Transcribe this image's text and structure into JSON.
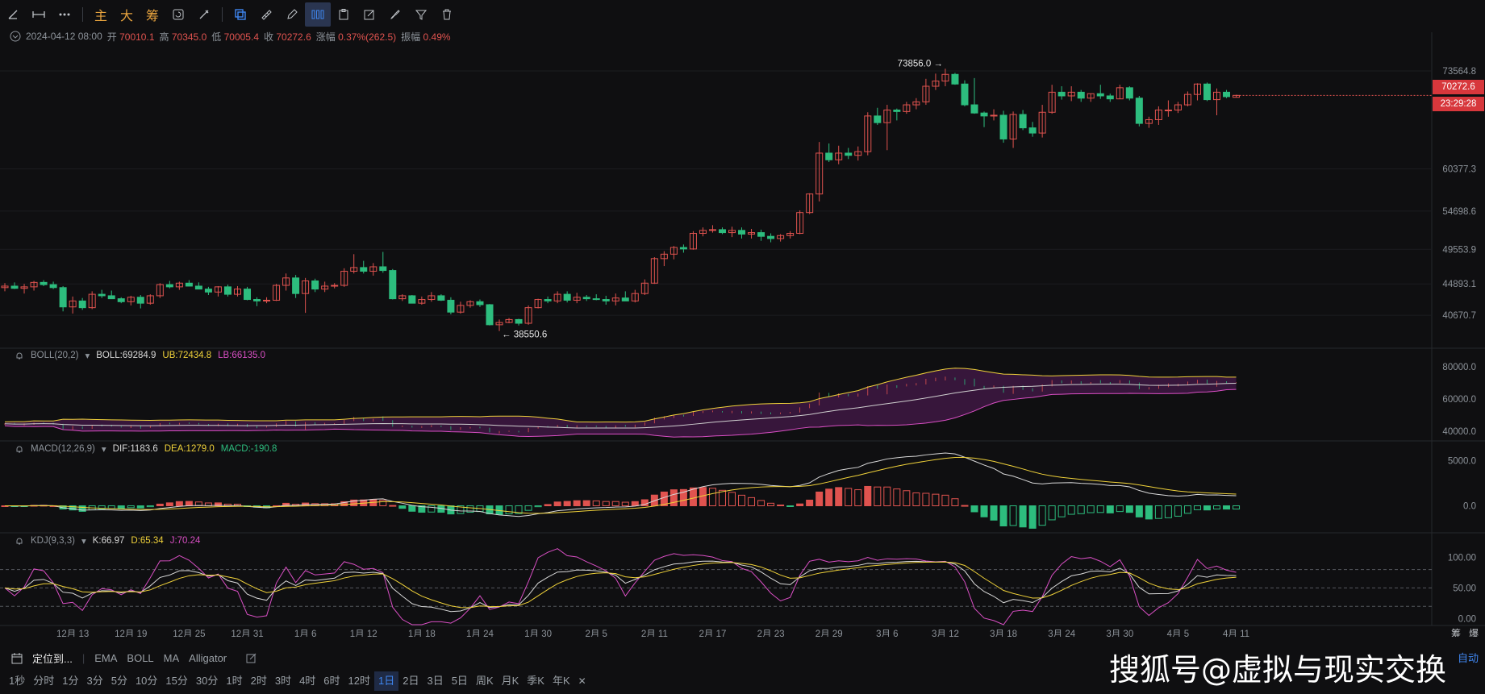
{
  "toolbar": {
    "text_buttons": [
      "主",
      "大",
      "筹"
    ],
    "icons": [
      "line-tool-icon",
      "horizontal-line-icon",
      "more-icon",
      "ruler-icon",
      "fib-icon",
      "clone-icon",
      "measure-icon",
      "pen-icon",
      "bars-icon",
      "clipboard-icon",
      "edit-icon",
      "brush-icon",
      "filter-icon",
      "trash-icon"
    ]
  },
  "info_line": {
    "datetime": "2024-04-12 08:00",
    "open_label": "开",
    "open": "70010.1",
    "high_label": "高",
    "high": "70345.0",
    "low_label": "低",
    "low": "70005.4",
    "close_label": "收",
    "close": "70272.6",
    "change_label": "涨幅",
    "change": "0.37%(262.5)",
    "amp_label": "振幅",
    "amp": "0.49%"
  },
  "main_axis": [
    "73564.8",
    "60377.3",
    "54698.6",
    "49553.9",
    "44893.1",
    "40670.7"
  ],
  "current_price": "70272.6",
  "countdown": "23:29:28",
  "annotations": {
    "high": "73856.0",
    "low": "38550.6"
  },
  "boll": {
    "name": "BOLL(20,2)",
    "mid": "BOLL:69284.9",
    "ub": "UB:72434.8",
    "lb": "LB:66135.0",
    "axis": [
      "80000.0",
      "60000.0",
      "40000.0"
    ]
  },
  "macd": {
    "name": "MACD(12,26,9)",
    "dif": "DIF:1183.6",
    "dea": "DEA:1279.0",
    "macd": "MACD:-190.8",
    "axis": [
      "5000.0",
      "0.0"
    ]
  },
  "kdj": {
    "name": "KDJ(9,3,3)",
    "k": "K:66.97",
    "d": "D:65.34",
    "j": "J:70.24",
    "axis": [
      "100.00",
      "50.00",
      "0.00"
    ]
  },
  "x_labels": [
    "12月 13",
    "12月 19",
    "12月 25",
    "12月 31",
    "1月 6",
    "1月 12",
    "1月 18",
    "1月 24",
    "1月 30",
    "2月 5",
    "2月 11",
    "2月 17",
    "2月 23",
    "2月 29",
    "3月 6",
    "3月 12",
    "3月 18",
    "3月 24",
    "3月 30",
    "4月 5",
    "4月 11"
  ],
  "corner_labels": [
    "筹",
    "爆"
  ],
  "bottom": {
    "locate": "定位到...",
    "indicators": [
      "EMA",
      "BOLL",
      "MA",
      "Alligator"
    ],
    "timeframes": [
      "1秒",
      "分时",
      "1分",
      "3分",
      "5分",
      "10分",
      "15分",
      "30分",
      "1时",
      "2时",
      "3时",
      "4时",
      "6时",
      "12时",
      "1日",
      "2日",
      "3日",
      "5日",
      "周K",
      "月K",
      "季K",
      "年K"
    ],
    "selected": "1日",
    "auto": "自动"
  },
  "watermark": "搜狐号@虚拟与现实交换",
  "colors": {
    "up": "#e0534f",
    "down": "#2dbd7e",
    "bg": "#0f0f11",
    "accent": "#3f86f0"
  },
  "chart_data": {
    "type": "candlestick",
    "series": [
      {
        "name": "candles",
        "values": [
          [
            44400,
            45000,
            43900,
            44600
          ],
          [
            44600,
            45100,
            44200,
            44300
          ],
          [
            44300,
            44900,
            43600,
            44500
          ],
          [
            44500,
            45300,
            44000,
            45100
          ],
          [
            45100,
            45400,
            44600,
            44800
          ],
          [
            44800,
            45200,
            44200,
            44400
          ],
          [
            44400,
            44600,
            41200,
            41800
          ],
          [
            41800,
            43200,
            40900,
            42600
          ],
          [
            42600,
            43000,
            41400,
            41700
          ],
          [
            41700,
            43900,
            41500,
            43500
          ],
          [
            43500,
            44100,
            43000,
            43300
          ],
          [
            43300,
            44000,
            42900,
            42900
          ],
          [
            42900,
            43100,
            42300,
            42500
          ],
          [
            42500,
            43300,
            42000,
            43100
          ],
          [
            43100,
            43400,
            41600,
            42300
          ],
          [
            42300,
            43500,
            42100,
            43300
          ],
          [
            43300,
            45000,
            43000,
            44800
          ],
          [
            44800,
            45300,
            44300,
            44500
          ],
          [
            44500,
            45200,
            44100,
            45000
          ],
          [
            45000,
            45400,
            44600,
            44600
          ],
          [
            44600,
            45100,
            44200,
            44200
          ],
          [
            44200,
            44500,
            43400,
            43800
          ],
          [
            43800,
            44600,
            43200,
            44500
          ],
          [
            44500,
            44800,
            43200,
            43500
          ],
          [
            43500,
            44600,
            43200,
            44200
          ],
          [
            44200,
            44500,
            42700,
            42800
          ],
          [
            42800,
            43100,
            41900,
            42600
          ],
          [
            42600,
            43100,
            42300,
            42700
          ],
          [
            42700,
            44900,
            42600,
            44700
          ],
          [
            44700,
            46300,
            44000,
            45700
          ],
          [
            45700,
            46100,
            43000,
            43600
          ],
          [
            43600,
            45700,
            41000,
            45300
          ],
          [
            45300,
            45600,
            43800,
            44200
          ],
          [
            44200,
            45200,
            43800,
            44600
          ],
          [
            44600,
            45000,
            44300,
            44700
          ],
          [
            44700,
            47000,
            44500,
            46600
          ],
          [
            46600,
            48900,
            46300,
            47100
          ],
          [
            47100,
            48000,
            46300,
            46600
          ],
          [
            46600,
            47700,
            46000,
            47200
          ],
          [
            47200,
            49200,
            46400,
            46700
          ],
          [
            46700,
            46900,
            42800,
            42900
          ],
          [
            42900,
            43500,
            42600,
            43300
          ],
          [
            43300,
            43400,
            42300,
            42300
          ],
          [
            42300,
            43200,
            42100,
            42800
          ],
          [
            42800,
            43800,
            42500,
            43300
          ],
          [
            43300,
            43500,
            42600,
            42700
          ],
          [
            42700,
            43100,
            40800,
            41100
          ],
          [
            41100,
            42500,
            40900,
            42000
          ],
          [
            42000,
            42700,
            41700,
            42500
          ],
          [
            42500,
            42800,
            41800,
            42100
          ],
          [
            42100,
            42200,
            39300,
            39400
          ],
          [
            39400,
            40100,
            38550,
            39700
          ],
          [
            39700,
            40300,
            39600,
            40100
          ],
          [
            40100,
            40200,
            39300,
            39600
          ],
          [
            39600,
            42000,
            39400,
            41700
          ],
          [
            41700,
            42900,
            41600,
            42800
          ],
          [
            42800,
            43200,
            42300,
            42600
          ],
          [
            42600,
            43900,
            42300,
            43500
          ],
          [
            43500,
            43900,
            42400,
            42700
          ],
          [
            42700,
            43700,
            42300,
            43100
          ],
          [
            43100,
            43400,
            42600,
            42900
          ],
          [
            42900,
            43500,
            42700,
            42800
          ],
          [
            42800,
            43300,
            42100,
            42600
          ],
          [
            42600,
            43600,
            42000,
            43000
          ],
          [
            43000,
            43900,
            42800,
            42600
          ],
          [
            42600,
            44100,
            42400,
            43600
          ],
          [
            43600,
            45500,
            43400,
            45000
          ],
          [
            45000,
            48500,
            44900,
            48300
          ],
          [
            48300,
            49300,
            47300,
            48900
          ],
          [
            48900,
            50000,
            48200,
            49800
          ],
          [
            49800,
            50200,
            49100,
            49600
          ],
          [
            49600,
            52000,
            49500,
            51700
          ],
          [
            51700,
            52500,
            51300,
            52100
          ],
          [
            52100,
            52800,
            51800,
            52200
          ],
          [
            52200,
            52500,
            51600,
            51800
          ],
          [
            51800,
            52600,
            51200,
            52100
          ],
          [
            52100,
            52500,
            51000,
            51600
          ],
          [
            51600,
            52300,
            51000,
            51800
          ],
          [
            51800,
            52200,
            50700,
            51300
          ],
          [
            51300,
            51700,
            50500,
            51000
          ],
          [
            51000,
            51600,
            50600,
            51400
          ],
          [
            51400,
            52000,
            51000,
            51700
          ],
          [
            51700,
            54800,
            51600,
            54500
          ],
          [
            54500,
            57100,
            54300,
            57000
          ],
          [
            57000,
            64000,
            56000,
            62500
          ],
          [
            62500,
            63800,
            61300,
            61600
          ],
          [
            61600,
            63500,
            61000,
            62500
          ],
          [
            62500,
            63200,
            61700,
            62200
          ],
          [
            62200,
            63400,
            61500,
            62700
          ],
          [
            62700,
            68000,
            62200,
            67500
          ],
          [
            67500,
            68600,
            66300,
            66600
          ],
          [
            66600,
            69000,
            62900,
            68300
          ],
          [
            68300,
            68500,
            66900,
            68100
          ],
          [
            68100,
            69400,
            67800,
            69000
          ],
          [
            69000,
            69900,
            68400,
            69400
          ],
          [
            69400,
            72500,
            69000,
            71500
          ],
          [
            71500,
            73200,
            71000,
            72200
          ],
          [
            72200,
            73856,
            71500,
            73100
          ],
          [
            73100,
            73300,
            71700,
            71800
          ],
          [
            71800,
            72300,
            68800,
            69000
          ],
          [
            69000,
            72600,
            67800,
            67900
          ],
          [
            67900,
            68100,
            66000,
            67500
          ],
          [
            67500,
            68400,
            66900,
            67600
          ],
          [
            67600,
            68200,
            63900,
            64400
          ],
          [
            64400,
            68100,
            63200,
            67700
          ],
          [
            67700,
            68300,
            65600,
            65900
          ],
          [
            65900,
            66700,
            64700,
            65200
          ],
          [
            65200,
            69000,
            64600,
            68000
          ],
          [
            68000,
            71700,
            67800,
            70700
          ],
          [
            70700,
            71500,
            69700,
            70200
          ],
          [
            70200,
            71500,
            69500,
            70700
          ],
          [
            70700,
            71000,
            69400,
            69900
          ],
          [
            69900,
            70500,
            69400,
            70500
          ],
          [
            70500,
            71700,
            69800,
            70200
          ],
          [
            70200,
            70500,
            69400,
            69800
          ],
          [
            69800,
            71700,
            69800,
            71300
          ],
          [
            71300,
            71500,
            69600,
            69900
          ],
          [
            69900,
            70200,
            66100,
            66500
          ],
          [
            66500,
            67400,
            65900,
            67000
          ],
          [
            67000,
            68800,
            66300,
            68300
          ],
          [
            68300,
            69600,
            67400,
            68300
          ],
          [
            68300,
            69400,
            67900,
            69000
          ],
          [
            69000,
            70800,
            68800,
            70400
          ],
          [
            70400,
            71900,
            69600,
            71800
          ],
          [
            71800,
            72000,
            69500,
            69700
          ],
          [
            69700,
            71200,
            67600,
            70700
          ],
          [
            70700,
            71000,
            69900,
            70100
          ],
          [
            70010,
            70345,
            70005,
            70272
          ]
        ]
      }
    ],
    "price_range": [
      37000,
      76600
    ],
    "boll_range": [
      35000,
      85000
    ],
    "macd_range": [
      -2000,
      6000
    ],
    "kdj_range": [
      -10,
      115
    ]
  }
}
